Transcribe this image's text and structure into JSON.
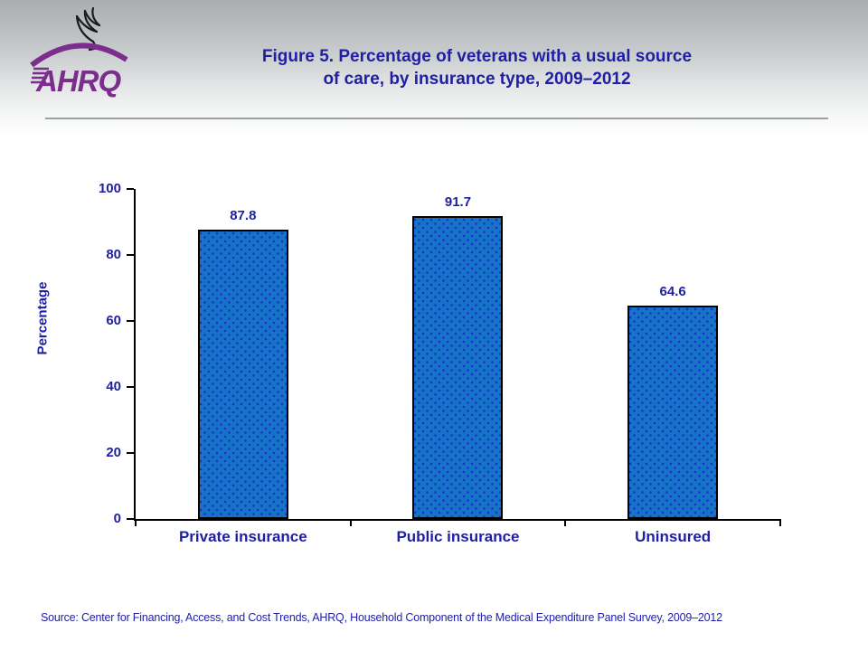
{
  "header": {
    "logo_text": "AHRQ",
    "title_lines": [
      "Figure 5. Percentage of veterans with a usual source",
      "of care, by insurance type, 2009–2012"
    ]
  },
  "chart_data": {
    "type": "bar",
    "title": "Figure 5. Percentage of veterans with a usual source of care, by insurance type, 2009–2012",
    "categories": [
      "Private insurance",
      "Public insurance",
      "Uninsured"
    ],
    "values": [
      87.8,
      91.7,
      64.6
    ],
    "xlabel": "",
    "ylabel": "Percentage",
    "ylim": [
      0,
      100
    ],
    "yticks": [
      0,
      20,
      40,
      60,
      80,
      100
    ],
    "grid": false,
    "legend": "none",
    "bar_labels_shown": true
  },
  "footer": {
    "source": "Source: Center for Financing, Access, and Cost Trends, AHRQ, Household Component of the Medical Expenditure Panel Survey, 2009–2012"
  },
  "colors": {
    "text_blue": "#1f1fa3",
    "bar_fill": "#1673c6",
    "bar_dot": "#1b2fd0",
    "logo_purple": "#7b2d8b",
    "divider_gray": "#9aa0a3",
    "axis_black": "#000000",
    "background_top_gray": "#a9adb0"
  }
}
